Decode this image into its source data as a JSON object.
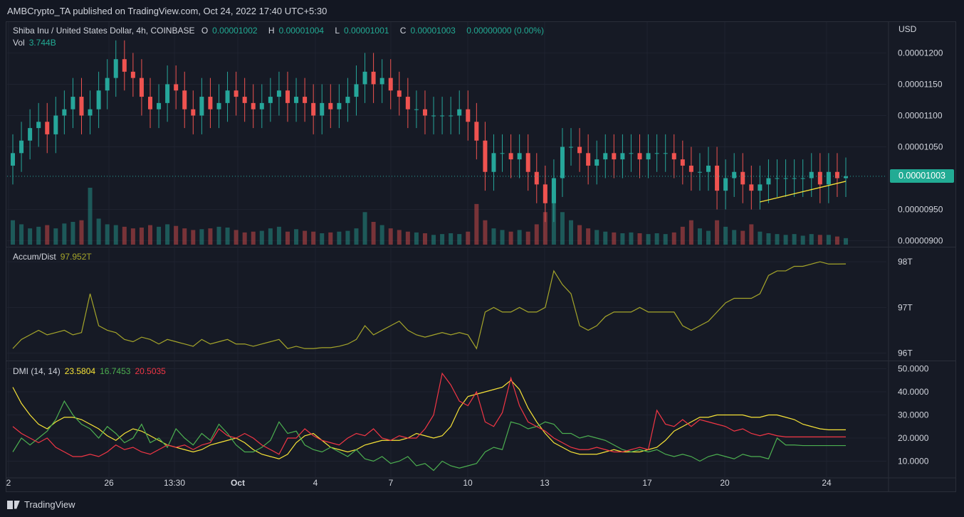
{
  "header": {
    "published": "AMBCrypto_TA published on TradingView.com, Oct 24, 2022 17:40 UTC+5:30"
  },
  "price_pane": {
    "symbol": "Shiba Inu / United States Dollar, 4h, COINBASE",
    "o_label": "O",
    "o": "0.00001002",
    "h_label": "H",
    "h": "0.00001004",
    "l_label": "L",
    "l": "0.00001001",
    "c_label": "C",
    "c": "0.00001003",
    "change": "0.00000000 (0.00%)",
    "vol_label": "Vol",
    "vol": "3.744B",
    "currency": "USD",
    "last_price": "0.00001003"
  },
  "ad_pane": {
    "label": "Accum/Dist",
    "value": "97.952T"
  },
  "dmi_pane": {
    "label": "DMI (14, 14)",
    "adx": "23.5804",
    "plus_di": "16.7453",
    "minus_di": "20.5035"
  },
  "footer": {
    "brand": "TradingView"
  },
  "colors": {
    "up": "#26a69a",
    "down": "#ef5350",
    "ad_line": "#a5a52a",
    "adx": "#f7e337",
    "plus_di": "#4caf50",
    "minus_di": "#f23645",
    "trendline": "#f7e337"
  },
  "chart_data": [
    {
      "type": "candlestick",
      "x_ticks": [
        "2",
        "26",
        "13:30",
        "Oct",
        "4",
        "7",
        "10",
        "13",
        "17",
        "20",
        "24"
      ],
      "y_ticks": [
        "0.00001200",
        "0.00001150",
        "0.00001100",
        "0.00001050",
        "0.00000950",
        "0.00000900"
      ],
      "ylim": [
        8.95e-06,
        1.23e-05
      ],
      "close": [
        1.04e-05,
        1.06e-05,
        1.08e-05,
        1.09e-05,
        1.07e-05,
        1.1e-05,
        1.11e-05,
        1.13e-05,
        1.1e-05,
        1.11e-05,
        1.14e-05,
        1.16e-05,
        1.19e-05,
        1.17e-05,
        1.16e-05,
        1.13e-05,
        1.11e-05,
        1.12e-05,
        1.15e-05,
        1.14e-05,
        1.11e-05,
        1.1e-05,
        1.13e-05,
        1.11e-05,
        1.12e-05,
        1.14e-05,
        1.13e-05,
        1.12e-05,
        1.11e-05,
        1.12e-05,
        1.13e-05,
        1.14e-05,
        1.12e-05,
        1.13e-05,
        1.12e-05,
        1.1e-05,
        1.12e-05,
        1.11e-05,
        1.12e-05,
        1.13e-05,
        1.15e-05,
        1.17e-05,
        1.15e-05,
        1.16e-05,
        1.14e-05,
        1.13e-05,
        1.11e-05,
        1.11e-05,
        1.1e-05,
        1.1e-05,
        1.1e-05,
        1.1e-05,
        1.11e-05,
        1.09e-05,
        1.06e-05,
        1.01e-05,
        1.04e-05,
        1.04e-05,
        1.03e-05,
        1.04e-05,
        1.01e-05,
        9.9e-06,
        9.6e-06,
        1e-05,
        1.05e-05,
        1.05e-05,
        1.04e-05,
        1.02e-05,
        1.03e-05,
        1.04e-05,
        1.03e-05,
        1.04e-05,
        1.04e-05,
        1.03e-05,
        1.04e-05,
        1.04e-05,
        1.04e-05,
        1.03e-05,
        1.02e-05,
        1.01e-05,
        1.01e-05,
        1.02e-05,
        9.8e-06,
        1e-05,
        1.01e-05,
        9.9e-06,
        9.8e-06,
        9.9e-06,
        1e-05,
        1e-05,
        1e-05,
        1e-05,
        1e-05,
        1.01e-05,
        9.9e-06,
        1.01e-05,
        1e-05,
        1.003e-05
      ],
      "trendline": [
        [
          87,
          9.62e-06
        ],
        [
          97,
          9.95e-06
        ]
      ]
    },
    {
      "type": "bar",
      "name": "Vol",
      "values": [
        3,
        2.5,
        2,
        2.2,
        2.4,
        2,
        2.6,
        2.8,
        3,
        7,
        3.2,
        2.5,
        2.4,
        2.2,
        2,
        2.1,
        2.4,
        2.2,
        2.5,
        2.3,
        2,
        1.8,
        1.9,
        2,
        2.2,
        2.1,
        1.8,
        1.5,
        1.6,
        1.7,
        2,
        2.2,
        1.6,
        1.9,
        1.7,
        1.6,
        1.4,
        1.5,
        1.6,
        1.7,
        2,
        4,
        2.8,
        2.4,
        2,
        1.8,
        1.6,
        1.5,
        1.4,
        1.2,
        1.3,
        1.4,
        1.3,
        1.6,
        5,
        3,
        2,
        1.8,
        1.6,
        1.8,
        1.6,
        2.5,
        4,
        6.5,
        4,
        3,
        2.4,
        2,
        1.8,
        1.6,
        1.5,
        1.4,
        1.5,
        1.4,
        1.3,
        1.4,
        1.3,
        1.5,
        2.2,
        3,
        2,
        1.7,
        3,
        2.2,
        1.8,
        1.7,
        2.5,
        1.6,
        1.4,
        1.3,
        1.2,
        1.3,
        1.1,
        1.3,
        1.2,
        1.2,
        1,
        0.8
      ]
    },
    {
      "type": "line",
      "name": "Accum/Dist",
      "y_ticks": [
        "98T",
        "97T",
        "96T"
      ],
      "ylim": [
        95.9,
        98.25
      ],
      "values": [
        96.1,
        96.3,
        96.4,
        96.5,
        96.4,
        96.45,
        96.5,
        96.4,
        96.45,
        97.3,
        96.6,
        96.5,
        96.45,
        96.3,
        96.25,
        96.35,
        96.3,
        96.2,
        96.3,
        96.25,
        96.2,
        96.15,
        96.3,
        96.2,
        96.25,
        96.3,
        96.2,
        96.2,
        96.15,
        96.2,
        96.25,
        96.3,
        96.1,
        96.15,
        96.1,
        96.1,
        96.12,
        96.12,
        96.15,
        96.2,
        96.3,
        96.6,
        96.4,
        96.5,
        96.6,
        96.7,
        96.5,
        96.4,
        96.35,
        96.4,
        96.45,
        96.4,
        96.45,
        96.4,
        96.1,
        96.9,
        97.0,
        96.9,
        96.9,
        97.0,
        96.9,
        96.9,
        97.0,
        97.8,
        97.5,
        97.3,
        96.6,
        96.5,
        96.6,
        96.8,
        96.9,
        96.9,
        96.9,
        97.0,
        96.9,
        96.9,
        96.9,
        96.9,
        96.6,
        96.5,
        96.6,
        96.7,
        96.9,
        97.1,
        97.2,
        97.2,
        97.2,
        97.3,
        97.7,
        97.8,
        97.8,
        97.9,
        97.9,
        97.95,
        98.0,
        97.95,
        97.95,
        97.952
      ]
    },
    {
      "type": "line",
      "name": "DMI (14, 14)",
      "y_ticks": [
        "50.0000",
        "40.0000",
        "30.0000",
        "20.0000",
        "10.0000"
      ],
      "ylim": [
        4,
        52
      ],
      "series": [
        {
          "name": "ADX",
          "values": [
            42,
            35,
            30,
            26,
            24,
            27,
            29,
            29,
            28,
            26,
            24,
            21,
            19,
            22,
            24,
            23,
            21,
            19,
            17,
            16,
            15,
            14,
            15,
            17,
            18,
            19,
            20,
            18,
            15,
            13,
            12,
            11,
            13,
            18,
            21,
            22,
            19,
            16,
            15,
            14,
            15,
            17,
            18,
            19,
            19,
            19,
            20,
            22,
            21,
            20,
            21,
            25,
            33,
            38,
            39,
            40,
            41,
            42,
            45,
            41,
            33,
            27,
            22,
            18,
            16,
            14,
            13,
            13,
            13,
            14,
            15,
            14,
            14,
            14,
            15,
            16,
            19,
            23,
            25,
            27,
            29,
            29,
            30,
            30,
            30,
            30,
            29,
            29,
            30,
            30,
            29,
            28,
            26,
            25,
            24,
            23.58,
            23.58,
            23.58
          ]
        },
        {
          "name": "+DI",
          "values": [
            14,
            20,
            17,
            20,
            23,
            28,
            36,
            30,
            26,
            24,
            20,
            25,
            22,
            18,
            20,
            26,
            18,
            20,
            16,
            24,
            20,
            17,
            22,
            19,
            26,
            22,
            17,
            14,
            14,
            16,
            19,
            27,
            22,
            23,
            17,
            15,
            14,
            16,
            14,
            12,
            15,
            11,
            10,
            12,
            9,
            10,
            12,
            8,
            9,
            6,
            10,
            8,
            7,
            8,
            9,
            14,
            16,
            15,
            27,
            26,
            24,
            25,
            27,
            26,
            22,
            22,
            20,
            21,
            20,
            19,
            17,
            15,
            14,
            15,
            14,
            15,
            13,
            12,
            13,
            12,
            10,
            12,
            13,
            12,
            11,
            13,
            12,
            12,
            11,
            20,
            17,
            17,
            16.75,
            16.75,
            16.75,
            16.75,
            16.75,
            16.75
          ]
        },
        {
          "name": "-DI",
          "values": [
            25,
            22,
            20,
            18,
            20,
            16,
            14,
            12,
            12,
            13,
            12,
            14,
            17,
            15,
            16,
            14,
            13,
            15,
            17,
            16,
            17,
            15,
            17,
            18,
            24,
            21,
            20,
            22,
            20,
            17,
            15,
            13,
            20,
            20,
            24,
            21,
            19,
            18,
            17,
            20,
            22,
            21,
            24,
            20,
            19,
            21,
            20,
            20,
            24,
            30,
            48,
            43,
            36,
            34,
            40,
            27,
            25,
            31,
            46,
            34,
            27,
            25,
            23,
            20,
            18,
            16,
            15,
            15,
            16,
            15,
            14,
            14,
            15,
            16,
            15,
            32,
            26,
            25,
            28,
            25,
            28,
            27,
            26,
            25,
            23,
            24,
            22,
            21,
            22,
            21,
            20.5,
            20.5,
            20.5,
            20.5,
            20.5,
            20.5,
            20.5,
            20.5
          ]
        }
      ]
    }
  ]
}
